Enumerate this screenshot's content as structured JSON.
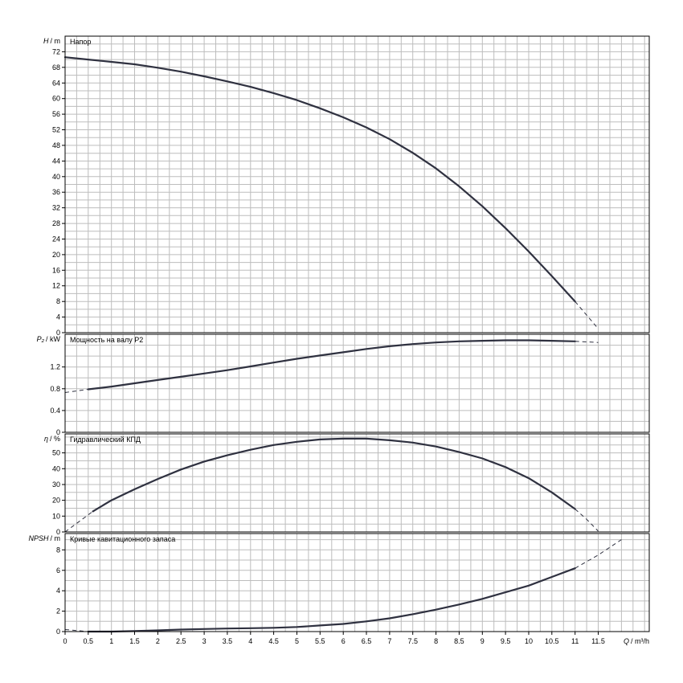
{
  "chart_data": {
    "type": "line",
    "x_axis": {
      "label_q": "Q",
      "label_unit": "/ m³/h",
      "range": [
        0,
        12.6
      ],
      "minor_step": 0.25,
      "tick_labels": [
        "0",
        "0.5",
        "1",
        "1.5",
        "2",
        "2.5",
        "3",
        "3.5",
        "4",
        "4.5",
        "5",
        "5.5",
        "6",
        "6.5",
        "7",
        "7.5",
        "8",
        "8.5",
        "9",
        "9.5",
        "10",
        "10.5",
        "11",
        "11.5"
      ]
    },
    "panels": [
      {
        "id": "head",
        "title": "Напор",
        "y_symbol": "H",
        "y_unit": "/ m",
        "ylim": [
          0,
          76
        ],
        "minor_step": 2,
        "tick_labels": [
          "0",
          "4",
          "8",
          "12",
          "16",
          "20",
          "24",
          "28",
          "32",
          "36",
          "40",
          "44",
          "48",
          "52",
          "56",
          "60",
          "64",
          "68",
          "72"
        ],
        "solid": [
          [
            0,
            70.6
          ],
          [
            0.5,
            70
          ],
          [
            1,
            69.4
          ],
          [
            1.5,
            68.8
          ],
          [
            2,
            67.9
          ],
          [
            2.5,
            66.9
          ],
          [
            3,
            65.7
          ],
          [
            3.5,
            64.4
          ],
          [
            4,
            63
          ],
          [
            4.5,
            61.4
          ],
          [
            5,
            59.6
          ],
          [
            5.5,
            57.5
          ],
          [
            6,
            55.2
          ],
          [
            6.5,
            52.6
          ],
          [
            7,
            49.6
          ],
          [
            7.5,
            46.1
          ],
          [
            8,
            42.1
          ],
          [
            8.5,
            37.5
          ],
          [
            9,
            32.4
          ],
          [
            9.5,
            26.8
          ],
          [
            10,
            20.8
          ],
          [
            10.5,
            14.5
          ],
          [
            11,
            8
          ]
        ],
        "dashed": [
          [
            11,
            8
          ],
          [
            11.25,
            4.5
          ],
          [
            11.5,
            1
          ]
        ]
      },
      {
        "id": "power",
        "title": "Мощность на валу P2",
        "y_symbol": "P₂",
        "y_unit": "/ kW",
        "ylim": [
          0,
          1.8
        ],
        "minor_step": 0.2,
        "tick_labels": [
          "0",
          "0.4",
          "0.8",
          "1.2"
        ],
        "solid": [
          [
            0.5,
            0.79
          ],
          [
            1,
            0.84
          ],
          [
            1.5,
            0.9
          ],
          [
            2,
            0.96
          ],
          [
            2.5,
            1.02
          ],
          [
            3,
            1.08
          ],
          [
            3.5,
            1.14
          ],
          [
            4,
            1.21
          ],
          [
            4.5,
            1.28
          ],
          [
            5,
            1.35
          ],
          [
            5.5,
            1.41
          ],
          [
            6,
            1.47
          ],
          [
            6.5,
            1.53
          ],
          [
            7,
            1.58
          ],
          [
            7.5,
            1.62
          ],
          [
            8,
            1.65
          ],
          [
            8.5,
            1.67
          ],
          [
            9,
            1.68
          ],
          [
            9.5,
            1.69
          ],
          [
            10,
            1.69
          ],
          [
            10.5,
            1.68
          ],
          [
            11,
            1.67
          ]
        ],
        "dashed": [
          [
            0,
            0.73
          ],
          [
            0.5,
            0.79
          ]
        ],
        "dashed_end": [
          [
            11,
            1.67
          ],
          [
            11.5,
            1.65
          ]
        ]
      },
      {
        "id": "efficiency",
        "title": "Гидравлический КПД",
        "y_symbol": "η",
        "y_unit": "/ %",
        "ylim": [
          0,
          62
        ],
        "minor_step": 5,
        "tick_labels": [
          "0",
          "10",
          "20",
          "30",
          "40",
          "50"
        ],
        "solid": [
          [
            0.6,
            13
          ],
          [
            1,
            20
          ],
          [
            1.5,
            27
          ],
          [
            2,
            33.5
          ],
          [
            2.5,
            39.5
          ],
          [
            3,
            44.5
          ],
          [
            3.5,
            48.5
          ],
          [
            4,
            52
          ],
          [
            4.5,
            55
          ],
          [
            5,
            57
          ],
          [
            5.5,
            58.5
          ],
          [
            6,
            59
          ],
          [
            6.5,
            59
          ],
          [
            7,
            58
          ],
          [
            7.5,
            56.5
          ],
          [
            8,
            54
          ],
          [
            8.5,
            50.5
          ],
          [
            9,
            46.5
          ],
          [
            9.5,
            41
          ],
          [
            10,
            34
          ],
          [
            10.5,
            25
          ],
          [
            11,
            14.5
          ]
        ],
        "dashed": [
          [
            0,
            0
          ],
          [
            0.6,
            13
          ]
        ],
        "dashed_end": [
          [
            11,
            14.5
          ],
          [
            11.25,
            8
          ],
          [
            11.5,
            0.5
          ]
        ]
      },
      {
        "id": "npsh",
        "title": "Кривые кавитационного запаса",
        "y_symbol": "NPSH",
        "y_unit": "/ m",
        "ylim": [
          0,
          9.6
        ],
        "minor_step": 1,
        "tick_labels": [
          "0",
          "2",
          "4",
          "6",
          "8"
        ],
        "solid": [
          [
            0.5,
            0
          ],
          [
            1,
            0
          ],
          [
            1.5,
            0.05
          ],
          [
            2,
            0.12
          ],
          [
            2.5,
            0.2
          ],
          [
            3,
            0.25
          ],
          [
            3.5,
            0.3
          ],
          [
            4,
            0.33
          ],
          [
            4.5,
            0.37
          ],
          [
            5,
            0.45
          ],
          [
            5.5,
            0.6
          ],
          [
            6,
            0.75
          ],
          [
            6.5,
            1
          ],
          [
            7,
            1.3
          ],
          [
            7.5,
            1.7
          ],
          [
            8,
            2.15
          ],
          [
            8.5,
            2.65
          ],
          [
            9,
            3.2
          ],
          [
            9.5,
            3.85
          ],
          [
            10,
            4.5
          ],
          [
            10.5,
            5.35
          ],
          [
            11,
            6.2
          ]
        ],
        "dashed": [
          [
            0,
            0.2
          ],
          [
            0.5,
            0
          ]
        ],
        "dashed_end": [
          [
            11,
            6.2
          ],
          [
            11.5,
            7.5
          ],
          [
            12,
            9
          ]
        ]
      }
    ]
  }
}
